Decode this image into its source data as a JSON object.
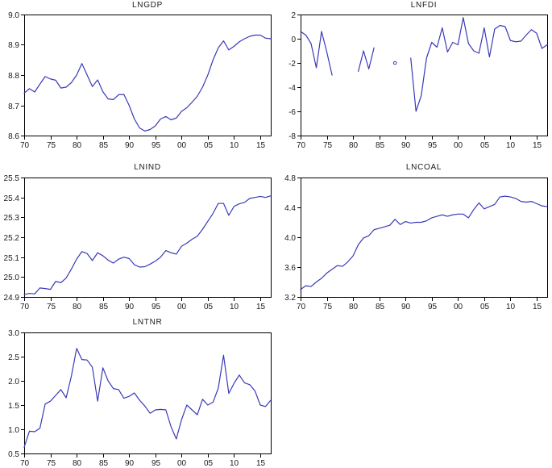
{
  "meta": {
    "background": "#ffffff",
    "axis_color": "#000000",
    "line_color": "#3a3ab8",
    "text_color": "#1a1a1a"
  },
  "chart_data": [
    {
      "type": "line",
      "title": "LNGDP",
      "x_start": 1970,
      "x_end": 2017,
      "ylim": [
        8.6,
        9.0
      ],
      "ytick_values": [
        9.0,
        8.9,
        8.8,
        8.7,
        8.6
      ],
      "ytick_labels": [
        "9.0",
        "8.9",
        "8.8",
        "8.7",
        "8.6"
      ],
      "xtick_values": [
        1970,
        1975,
        1980,
        1985,
        1990,
        1995,
        2000,
        2005,
        2010,
        2015
      ],
      "xtick_labels": [
        "70",
        "75",
        "80",
        "85",
        "90",
        "95",
        "00",
        "05",
        "10",
        "15"
      ],
      "values": [
        8.74,
        8.755,
        8.744,
        8.77,
        8.795,
        8.787,
        8.783,
        8.757,
        8.76,
        8.775,
        8.8,
        8.838,
        8.8,
        8.762,
        8.784,
        8.745,
        8.721,
        8.719,
        8.735,
        8.736,
        8.7,
        8.655,
        8.625,
        8.615,
        8.62,
        8.632,
        8.655,
        8.663,
        8.652,
        8.658,
        8.68,
        8.692,
        8.71,
        8.73,
        8.76,
        8.8,
        8.85,
        8.89,
        8.913,
        8.883,
        8.895,
        8.91,
        8.92,
        8.928,
        8.932,
        8.932,
        8.922,
        8.92
      ]
    },
    {
      "type": "line",
      "title": "LNFDI",
      "x_start": 1970,
      "x_end": 2017,
      "ylim": [
        -8,
        2
      ],
      "ytick_values": [
        2,
        0,
        -2,
        -4,
        -6,
        -8
      ],
      "ytick_labels": [
        "2",
        "0",
        "-2",
        "-4",
        "-6",
        "-8"
      ],
      "xtick_values": [
        1970,
        1975,
        1980,
        1985,
        1990,
        1995,
        2000,
        2005,
        2010,
        2015
      ],
      "xtick_labels": [
        "70",
        "75",
        "80",
        "85",
        "90",
        "95",
        "00",
        "05",
        "10",
        "15"
      ],
      "values": [
        0.6,
        0.3,
        -0.4,
        -2.4,
        0.6,
        -1.1,
        -3.0,
        null,
        null,
        null,
        null,
        -2.7,
        -1.0,
        -2.5,
        -0.75,
        null,
        null,
        null,
        -2.0,
        null,
        null,
        -1.6,
        -6.0,
        -4.7,
        -1.6,
        -0.3,
        -0.7,
        0.9,
        -1.1,
        -0.3,
        -0.5,
        1.75,
        -0.4,
        -1.0,
        -1.2,
        0.9,
        -1.5,
        0.8,
        1.1,
        1.0,
        -0.15,
        -0.25,
        -0.2,
        0.3,
        0.75,
        0.45,
        -0.8,
        -0.5
      ]
    },
    {
      "type": "line",
      "title": "LNIND",
      "x_start": 1970,
      "x_end": 2017,
      "ylim": [
        24.9,
        25.5
      ],
      "ytick_values": [
        25.5,
        25.4,
        25.3,
        25.2,
        25.1,
        25.0,
        24.9
      ],
      "ytick_labels": [
        "25.5",
        "25.4",
        "25.3",
        "25.2",
        "25.1",
        "25.0",
        "24.9"
      ],
      "xtick_values": [
        1970,
        1975,
        1980,
        1985,
        1990,
        1995,
        2000,
        2005,
        2010,
        2015
      ],
      "xtick_labels": [
        "70",
        "75",
        "80",
        "85",
        "90",
        "95",
        "00",
        "05",
        "10",
        "15"
      ],
      "values": [
        24.912,
        24.918,
        24.915,
        24.945,
        24.942,
        24.938,
        24.978,
        24.972,
        24.995,
        25.04,
        25.09,
        25.128,
        25.118,
        25.083,
        25.122,
        25.107,
        25.085,
        25.07,
        25.09,
        25.1,
        25.093,
        25.062,
        25.05,
        25.052,
        25.065,
        25.08,
        25.1,
        25.133,
        25.122,
        25.115,
        25.155,
        25.17,
        25.19,
        25.205,
        25.24,
        25.28,
        25.32,
        25.37,
        25.37,
        25.31,
        25.355,
        25.368,
        25.375,
        25.395,
        25.4,
        25.405,
        25.4,
        25.408
      ]
    },
    {
      "type": "line",
      "title": "LNCOAL",
      "x_start": 1970,
      "x_end": 2017,
      "ylim": [
        3.2,
        4.8
      ],
      "ytick_values": [
        4.8,
        4.4,
        4.0,
        3.6,
        3.2
      ],
      "ytick_labels": [
        "4.8",
        "4.4",
        "4.0",
        "3.6",
        "3.2"
      ],
      "xtick_values": [
        1970,
        1975,
        1980,
        1985,
        1990,
        1995,
        2000,
        2005,
        2010,
        2015
      ],
      "xtick_labels": [
        "70",
        "75",
        "80",
        "85",
        "90",
        "95",
        "00",
        "05",
        "10",
        "15"
      ],
      "values": [
        3.3,
        3.35,
        3.34,
        3.4,
        3.45,
        3.52,
        3.57,
        3.62,
        3.61,
        3.67,
        3.75,
        3.9,
        3.99,
        4.02,
        4.1,
        4.12,
        4.14,
        4.16,
        4.24,
        4.17,
        4.21,
        4.19,
        4.2,
        4.2,
        4.22,
        4.26,
        4.28,
        4.3,
        4.28,
        4.3,
        4.31,
        4.31,
        4.26,
        4.37,
        4.46,
        4.38,
        4.41,
        4.44,
        4.54,
        4.55,
        4.54,
        4.52,
        4.48,
        4.47,
        4.48,
        4.45,
        4.42,
        4.41
      ]
    },
    {
      "type": "line",
      "title": "LNTNR",
      "x_start": 1970,
      "x_end": 2017,
      "ylim": [
        0.5,
        3.0
      ],
      "ytick_values": [
        3.0,
        2.5,
        2.0,
        1.5,
        1.0,
        0.5
      ],
      "ytick_labels": [
        "3.0",
        "2.5",
        "2.0",
        "1.5",
        "1.0",
        "0.5"
      ],
      "xtick_values": [
        1970,
        1975,
        1980,
        1985,
        1990,
        1995,
        2000,
        2005,
        2010,
        2015
      ],
      "xtick_labels": [
        "70",
        "75",
        "80",
        "85",
        "90",
        "95",
        "00",
        "05",
        "10",
        "15"
      ],
      "values": [
        0.63,
        0.96,
        0.95,
        1.02,
        1.52,
        1.58,
        1.7,
        1.82,
        1.65,
        2.1,
        2.67,
        2.44,
        2.43,
        2.28,
        1.58,
        2.27,
        2.0,
        1.84,
        1.82,
        1.64,
        1.68,
        1.75,
        1.6,
        1.48,
        1.33,
        1.4,
        1.41,
        1.4,
        1.05,
        0.8,
        1.2,
        1.5,
        1.4,
        1.3,
        1.62,
        1.5,
        1.56,
        1.85,
        2.53,
        1.74,
        1.95,
        2.12,
        1.96,
        1.92,
        1.79,
        1.5,
        1.47,
        1.6
      ]
    }
  ]
}
